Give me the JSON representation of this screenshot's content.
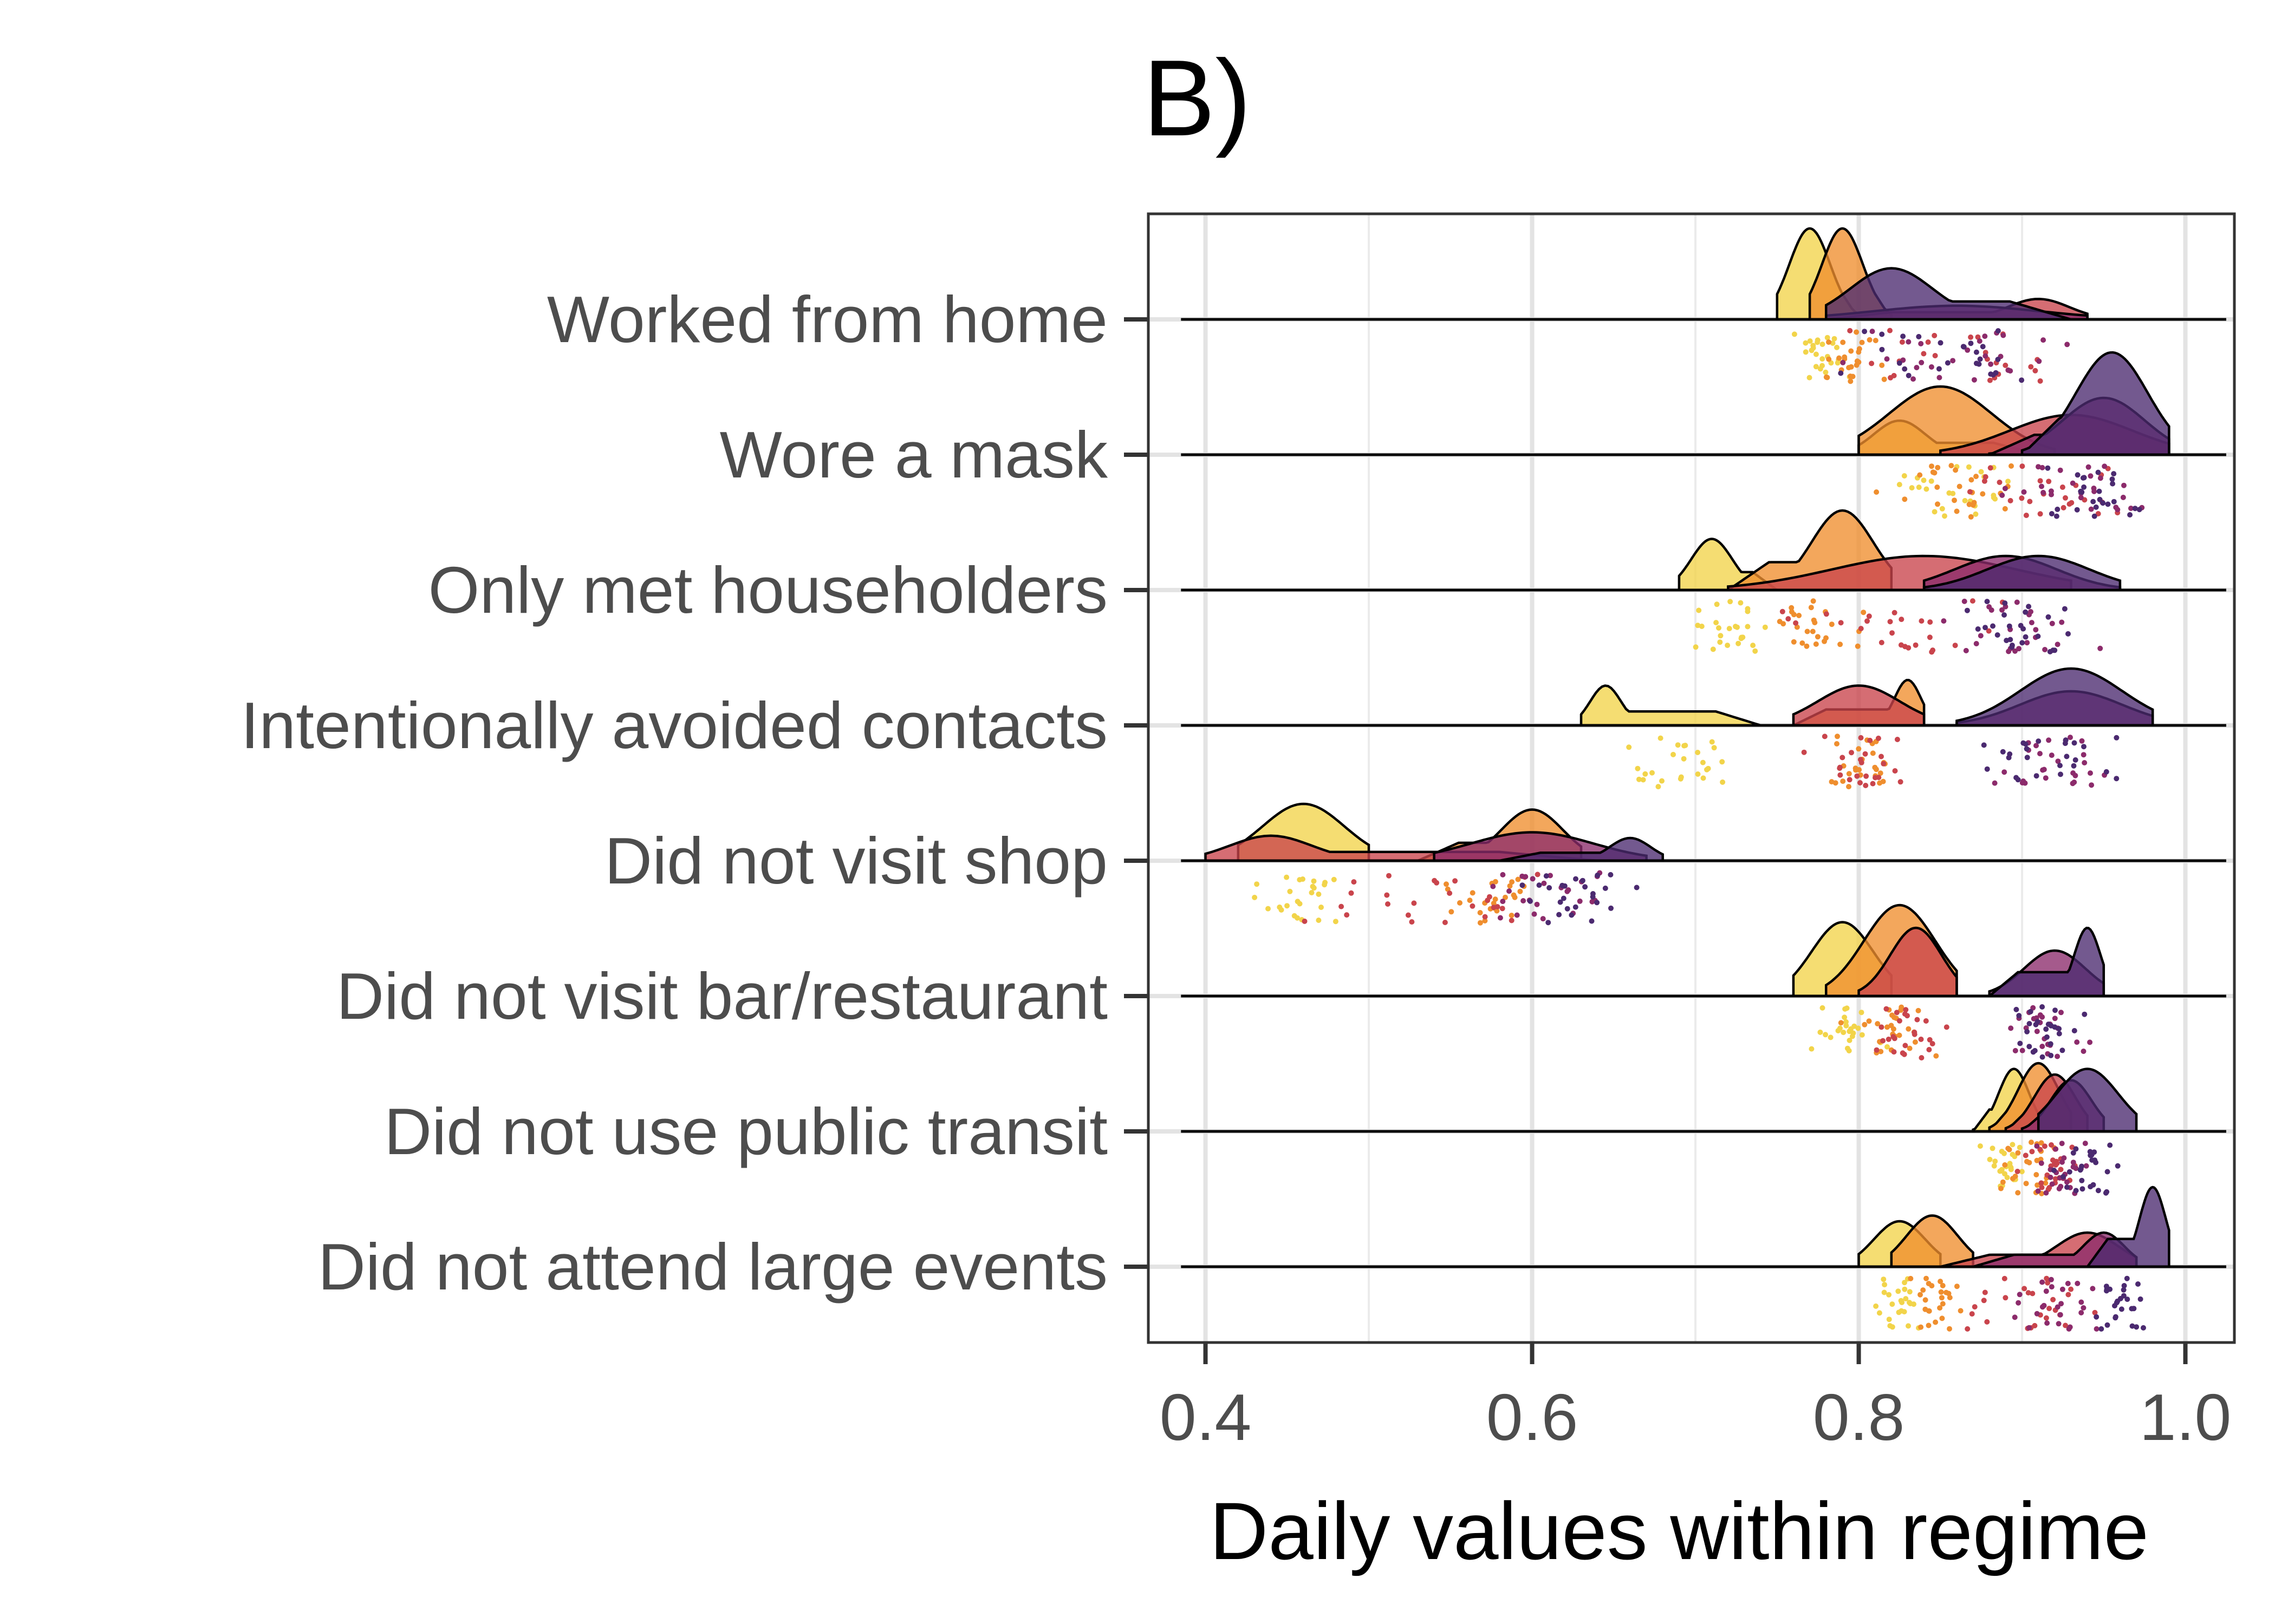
{
  "chart_data": {
    "type": "ridgeline",
    "title": "B)",
    "xlabel": "Daily values within regime",
    "ylabel": "",
    "xlim": [
      0.365,
      1.03
    ],
    "xticks": [
      0.4,
      0.6,
      0.8,
      1.0
    ],
    "xtick_labels": [
      "0.4",
      "0.6",
      "0.8",
      "1.0"
    ],
    "grid": true,
    "legend": "none",
    "regime_colors": [
      "#f2d44a",
      "#ef8e2e",
      "#c9444c",
      "#8c2b6b",
      "#4b2a70"
    ],
    "categories": [
      "Worked from home",
      "Wore a mask",
      "Only met householders",
      "Intentionally avoided contacts",
      "Did not visit shop",
      "Did not visit bar/restaurant",
      "Did not use public transit",
      "Did not attend large events"
    ],
    "series": [
      {
        "category": "Worked from home",
        "points": [
          {
            "regime": 1,
            "min": 0.75,
            "max": 0.8,
            "peak": 0.77,
            "height": 0.8
          },
          {
            "regime": 2,
            "min": 0.77,
            "max": 0.82,
            "peak": 0.79,
            "height": 0.8
          },
          {
            "regime": 3,
            "min": 0.78,
            "max": 0.94,
            "peak": 0.91,
            "height": 0.18
          },
          {
            "regime": 4,
            "min": 0.78,
            "max": 0.94,
            "peak": 0.86,
            "height": 0.12
          },
          {
            "regime": 5,
            "min": 0.78,
            "max": 0.93,
            "peak": 0.82,
            "height": 0.45
          }
        ]
      },
      {
        "category": "Wore a mask",
        "points": [
          {
            "regime": 1,
            "min": 0.8,
            "max": 0.91,
            "peak": 0.825,
            "height": 0.3
          },
          {
            "regime": 2,
            "min": 0.8,
            "max": 0.92,
            "peak": 0.85,
            "height": 0.6
          },
          {
            "regime": 3,
            "min": 0.85,
            "max": 0.99,
            "peak": 0.93,
            "height": 0.35
          },
          {
            "regime": 4,
            "min": 0.88,
            "max": 0.99,
            "peak": 0.95,
            "height": 0.5
          },
          {
            "regime": 5,
            "min": 0.9,
            "max": 0.99,
            "peak": 0.955,
            "height": 0.9
          }
        ]
      },
      {
        "category": "Only met householders",
        "points": [
          {
            "regime": 1,
            "min": 0.69,
            "max": 0.75,
            "peak": 0.71,
            "height": 0.45
          },
          {
            "regime": 2,
            "min": 0.72,
            "max": 0.82,
            "peak": 0.79,
            "height": 0.7
          },
          {
            "regime": 3,
            "min": 0.72,
            "max": 0.93,
            "peak": 0.84,
            "height": 0.3
          },
          {
            "regime": 4,
            "min": 0.84,
            "max": 0.96,
            "peak": 0.89,
            "height": 0.3
          },
          {
            "regime": 5,
            "min": 0.84,
            "max": 0.96,
            "peak": 0.91,
            "height": 0.3
          }
        ]
      },
      {
        "category": "Intentionally avoided contacts",
        "points": [
          {
            "regime": 1,
            "min": 0.63,
            "max": 0.74,
            "peak": 0.645,
            "height": 0.35
          },
          {
            "regime": 2,
            "min": 0.76,
            "max": 0.84,
            "peak": 0.83,
            "height": 0.4
          },
          {
            "regime": 3,
            "min": 0.76,
            "max": 0.84,
            "peak": 0.8,
            "height": 0.35
          },
          {
            "regime": 4,
            "min": 0.86,
            "max": 0.98,
            "peak": 0.93,
            "height": 0.3
          },
          {
            "regime": 5,
            "min": 0.86,
            "max": 0.98,
            "peak": 0.93,
            "height": 0.5
          }
        ]
      },
      {
        "category": "Did not visit shop",
        "points": [
          {
            "regime": 1,
            "min": 0.42,
            "max": 0.5,
            "peak": 0.46,
            "height": 0.5
          },
          {
            "regime": 2,
            "min": 0.53,
            "max": 0.63,
            "peak": 0.6,
            "height": 0.45
          },
          {
            "regime": 3,
            "min": 0.4,
            "max": 0.64,
            "peak": 0.44,
            "height": 0.22
          },
          {
            "regime": 4,
            "min": 0.54,
            "max": 0.67,
            "peak": 0.6,
            "height": 0.25
          },
          {
            "regime": 5,
            "min": 0.58,
            "max": 0.68,
            "peak": 0.66,
            "height": 0.2
          }
        ]
      },
      {
        "category": "Did not visit bar/restaurant",
        "points": [
          {
            "regime": 1,
            "min": 0.76,
            "max": 0.82,
            "peak": 0.79,
            "height": 0.65
          },
          {
            "regime": 2,
            "min": 0.78,
            "max": 0.86,
            "peak": 0.825,
            "height": 0.8
          },
          {
            "regime": 3,
            "min": 0.8,
            "max": 0.86,
            "peak": 0.835,
            "height": 0.6
          },
          {
            "regime": 4,
            "min": 0.88,
            "max": 0.95,
            "peak": 0.92,
            "height": 0.4
          },
          {
            "regime": 5,
            "min": 0.88,
            "max": 0.95,
            "peak": 0.94,
            "height": 0.6
          }
        ]
      },
      {
        "category": "Did not use public transit",
        "points": [
          {
            "regime": 1,
            "min": 0.87,
            "max": 0.91,
            "peak": 0.895,
            "height": 0.55
          },
          {
            "regime": 2,
            "min": 0.88,
            "max": 0.93,
            "peak": 0.91,
            "height": 0.6
          },
          {
            "regime": 3,
            "min": 0.89,
            "max": 0.94,
            "peak": 0.92,
            "height": 0.5
          },
          {
            "regime": 4,
            "min": 0.9,
            "max": 0.95,
            "peak": 0.93,
            "height": 0.45
          },
          {
            "regime": 5,
            "min": 0.91,
            "max": 0.97,
            "peak": 0.94,
            "height": 0.55
          }
        ]
      },
      {
        "category": "Did not attend large events",
        "points": [
          {
            "regime": 1,
            "min": 0.8,
            "max": 0.85,
            "peak": 0.825,
            "height": 0.4
          },
          {
            "regime": 2,
            "min": 0.82,
            "max": 0.87,
            "peak": 0.845,
            "height": 0.45
          },
          {
            "regime": 3,
            "min": 0.85,
            "max": 0.97,
            "peak": 0.94,
            "height": 0.3
          },
          {
            "regime": 4,
            "min": 0.87,
            "max": 0.97,
            "peak": 0.95,
            "height": 0.3
          },
          {
            "regime": 5,
            "min": 0.94,
            "max": 0.99,
            "peak": 0.98,
            "height": 0.7
          }
        ]
      }
    ]
  }
}
